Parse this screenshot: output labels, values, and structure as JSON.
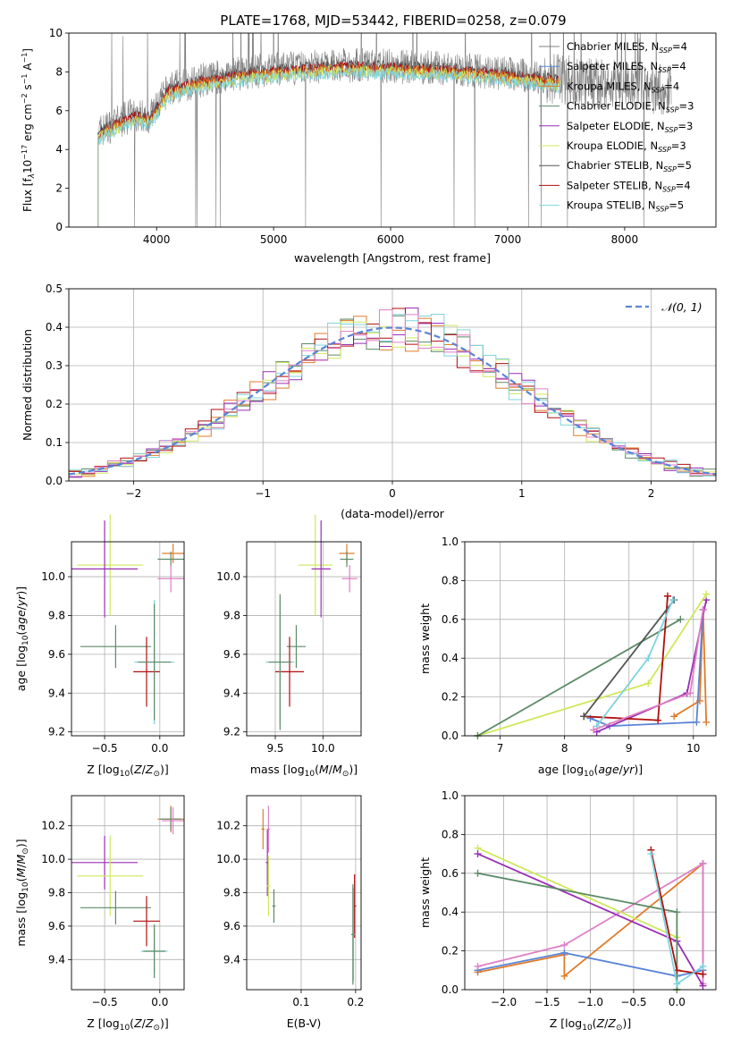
{
  "title": "PLATE=1768, MJD=53442, FIBERID=0258, z=0.079",
  "colors": {
    "grid": "#b0b0b0",
    "model_grey": "#808080",
    "orange": "#e07b29",
    "darkgreen": "#5b8a66",
    "purple": "#9a2fb5",
    "yellowgreen": "#cfe85a",
    "darkred": "#b00e0e",
    "cyan": "#7fd3de",
    "blue": "#5a84d6",
    "pink": "#e07fc5",
    "normal": "#5a84d6"
  },
  "chart_data": [
    {
      "id": "spectrum",
      "type": "line",
      "title": "PLATE=1768, MJD=53442, FIBERID=0258, z=0.079",
      "xlabel": "wavelength [Angstrom, rest frame]",
      "ylabel": "Flux [f_λ 10^-17 erg cm^-2 s^-1 A^-1]",
      "xlim": [
        3250,
        8780
      ],
      "ylim": [
        0,
        10
      ],
      "xticks": [
        4000,
        5000,
        6000,
        7000,
        8000
      ],
      "yticks": [
        0,
        2,
        4,
        6,
        8,
        10
      ],
      "legend_position": "right",
      "legend": [
        {
          "label": "Chabrier MILES, N",
          "sub": "SSP",
          "tail": "=4",
          "color": "#808080"
        },
        {
          "label": "Salpeter MILES, N",
          "sub": "SSP",
          "tail": "=4",
          "color": "#5a84d6"
        },
        {
          "label": "Kroupa MILES, N",
          "sub": "SSP",
          "tail": "=4",
          "color": "#e07b29"
        },
        {
          "label": "Chabrier ELODIE, N",
          "sub": "SSP",
          "tail": "=3",
          "color": "#5b8a66"
        },
        {
          "label": "Salpeter ELODIE, N",
          "sub": "SSP",
          "tail": "=3",
          "color": "#9a2fb5"
        },
        {
          "label": "Kroupa ELODIE, N",
          "sub": "SSP",
          "tail": "=3",
          "color": "#cfe85a"
        },
        {
          "label": "Chabrier STELIB, N",
          "sub": "SSP",
          "tail": "=5",
          "color": "#555555"
        },
        {
          "label": "Salpeter STELIB, N",
          "sub": "SSP",
          "tail": "=4",
          "color": "#b00e0e"
        },
        {
          "label": "Kroupa STELIB, N",
          "sub": "SSP",
          "tail": "=5",
          "color": "#7fd3de"
        }
      ],
      "continuum": [
        [
          3500,
          4.9
        ],
        [
          3800,
          5.8
        ],
        [
          3950,
          5.7
        ],
        [
          4100,
          7.1
        ],
        [
          4400,
          7.6
        ],
        [
          4800,
          8.0
        ],
        [
          5200,
          8.2
        ],
        [
          5600,
          8.35
        ],
        [
          6000,
          8.3
        ],
        [
          6500,
          8.2
        ],
        [
          7000,
          7.9
        ],
        [
          7450,
          7.6
        ]
      ],
      "models": [
        {
          "name": "Chabrier STELIB",
          "x": [
            3500,
            7450
          ],
          "color": "#555555"
        },
        {
          "name": "Salpeter STELIB",
          "x": [
            3500,
            7450
          ],
          "color": "#b00e0e"
        },
        {
          "name": "Kroupa MILES",
          "x": [
            3500,
            7450
          ],
          "color": "#e07b29"
        },
        {
          "name": "Kroupa ELODIE",
          "x": [
            3500,
            7450
          ],
          "color": "#cfe85a"
        },
        {
          "name": "Kroupa STELIB",
          "x": [
            3500,
            7450
          ],
          "color": "#7fd3de"
        }
      ],
      "data_range": [
        3500,
        8400
      ]
    },
    {
      "id": "residuals",
      "type": "line",
      "xlabel": "(data-model)/error",
      "ylabel": "Normed distribution",
      "xlim": [
        -2.5,
        2.5
      ],
      "ylim": [
        0,
        0.5
      ],
      "xticks": [
        -2,
        -1,
        0,
        1,
        2
      ],
      "yticks": [
        0.0,
        0.1,
        0.2,
        0.3,
        0.4,
        0.5
      ],
      "legend": [
        {
          "label": "𝒩(0, 1)",
          "color": "#5a84d6"
        }
      ],
      "legend_position": "top-right",
      "normal": {
        "mu": 0,
        "sigma": 1,
        "style": "dashed"
      },
      "bin_width": 0.1,
      "series_colors": [
        "#e07b29",
        "#5b8a66",
        "#9a2fb5",
        "#cfe85a",
        "#b00e0e",
        "#7fd3de",
        "#e07fc5"
      ]
    },
    {
      "id": "age_vs_Z",
      "type": "scatter",
      "xlabel": "Z [log10(Z/Z_sun)]",
      "ylabel": "age [log10(age/yr)]",
      "xlim": [
        -0.8,
        0.22
      ],
      "ylim": [
        9.18,
        10.18
      ],
      "xticks": [
        -0.5,
        0.0
      ],
      "yticks": [
        9.2,
        9.4,
        9.6,
        9.8,
        10.0
      ],
      "points": [
        {
          "x": 0.12,
          "y": 10.12,
          "xerr": 0.1,
          "yerr": 0.05,
          "color": "#e07b29"
        },
        {
          "x": 0.1,
          "y": 10.09,
          "xerr": 0.12,
          "yerr": 0.04,
          "color": "#5b8a66"
        },
        {
          "x": 0.1,
          "y": 9.99,
          "xerr": 0.12,
          "yerr": 0.07,
          "color": "#e07fc5"
        },
        {
          "x": -0.45,
          "y": 10.06,
          "xerr": 0.3,
          "yerr": 0.26,
          "color": "#cfe85a"
        },
        {
          "x": -0.5,
          "y": 10.04,
          "xerr": 0.3,
          "yerr": 0.25,
          "color": "#9a2fb5"
        },
        {
          "x": -0.4,
          "y": 9.64,
          "xerr": 0.32,
          "yerr": 0.11,
          "color": "#5b8a66"
        },
        {
          "x": -0.12,
          "y": 9.51,
          "xerr": 0.12,
          "yerr": 0.18,
          "color": "#b00e0e"
        },
        {
          "x": -0.05,
          "y": 9.56,
          "xerr": 0.18,
          "yerr": 0.32,
          "color": "#7fd3de"
        },
        {
          "x": -0.05,
          "y": 9.56,
          "xerr": 0.15,
          "yerr": 0.3,
          "color": "#5b8a66"
        }
      ]
    },
    {
      "id": "age_vs_mass",
      "type": "scatter",
      "xlabel": "mass [log10(M/M_sun)]",
      "ylabel": "",
      "xlim": [
        9.2,
        10.4
      ],
      "ylim": [
        9.18,
        10.18
      ],
      "xticks": [
        9.5,
        10.0
      ],
      "yticks": [
        9.2,
        9.4,
        9.6,
        9.8,
        10.0
      ],
      "points": [
        {
          "x": 10.25,
          "y": 10.12,
          "xerr": 0.08,
          "yerr": 0.05,
          "color": "#e07b29"
        },
        {
          "x": 10.25,
          "y": 10.09,
          "xerr": 0.07,
          "yerr": 0.04,
          "color": "#5b8a66"
        },
        {
          "x": 10.28,
          "y": 9.99,
          "xerr": 0.08,
          "yerr": 0.07,
          "color": "#e07fc5"
        },
        {
          "x": 9.92,
          "y": 10.06,
          "xerr": 0.18,
          "yerr": 0.26,
          "color": "#cfe85a"
        },
        {
          "x": 9.98,
          "y": 10.04,
          "xerr": 0.1,
          "yerr": 0.25,
          "color": "#9a2fb5"
        },
        {
          "x": 9.72,
          "y": 9.64,
          "xerr": 0.1,
          "yerr": 0.11,
          "color": "#5b8a66"
        },
        {
          "x": 9.65,
          "y": 9.51,
          "xerr": 0.15,
          "yerr": 0.18,
          "color": "#b00e0e"
        },
        {
          "x": 9.55,
          "y": 9.56,
          "xerr": 0.15,
          "yerr": 0.32,
          "color": "#7fd3de"
        },
        {
          "x": 9.55,
          "y": 9.56,
          "xerr": 0.12,
          "yerr": 0.35,
          "color": "#5b8a66"
        }
      ]
    },
    {
      "id": "weight_vs_age",
      "type": "line",
      "xlabel": "age [log10(age/yr)]",
      "ylabel": "mass weight",
      "xlim": [
        6.45,
        10.35
      ],
      "ylim": [
        0,
        1
      ],
      "xticks": [
        7,
        8,
        9,
        10
      ],
      "yticks": [
        0.0,
        0.2,
        0.4,
        0.6,
        0.8,
        1.0
      ],
      "series": [
        {
          "name": "Kroupa MILES",
          "color": "#e07b29",
          "points": [
            [
              9.7,
              0.1
            ],
            [
              10.1,
              0.18
            ],
            [
              10.15,
              0.65
            ],
            [
              10.2,
              0.07
            ]
          ]
        },
        {
          "name": "Salpeter MILES",
          "color": "#5a84d6",
          "points": [
            [
              8.4,
              0.09
            ],
            [
              8.7,
              0.05
            ],
            [
              10.05,
              0.07
            ],
            [
              10.15,
              0.65
            ]
          ]
        },
        {
          "name": "Salpeter ELODIE",
          "color": "#9a2fb5",
          "points": [
            [
              8.5,
              0.02
            ],
            [
              9.9,
              0.22
            ],
            [
              10.2,
              0.7
            ]
          ]
        },
        {
          "name": "Kroupa ELODIE",
          "color": "#cfe85a",
          "points": [
            [
              6.65,
              0.0
            ],
            [
              9.3,
              0.27
            ],
            [
              10.2,
              0.73
            ]
          ]
        },
        {
          "name": "Chabrier ELODIE",
          "color": "#5b8a66",
          "points": [
            [
              6.65,
              0.0
            ],
            [
              9.8,
              0.6
            ]
          ]
        },
        {
          "name": "Salpeter STELIB",
          "color": "#b00e0e",
          "points": [
            [
              8.3,
              0.1
            ],
            [
              9.45,
              0.08
            ],
            [
              9.6,
              0.72
            ]
          ]
        },
        {
          "name": "Chabrier STELIB",
          "color": "#555555",
          "points": [
            [
              8.3,
              0.1
            ],
            [
              9.7,
              0.7
            ]
          ]
        },
        {
          "name": "Kroupa STELIB",
          "color": "#7fd3de",
          "points": [
            [
              8.5,
              0.05
            ],
            [
              9.3,
              0.4
            ],
            [
              9.68,
              0.7
            ]
          ]
        },
        {
          "name": "Pink",
          "color": "#e07fc5",
          "points": [
            [
              8.45,
              0.03
            ],
            [
              9.95,
              0.22
            ],
            [
              10.15,
              0.65
            ]
          ]
        }
      ]
    },
    {
      "id": "mass_vs_Z",
      "type": "scatter",
      "xlabel": "Z [log10(Z/Z_sun)]",
      "ylabel": "mass [log10(M/M_sun)]",
      "xlim": [
        -0.8,
        0.22
      ],
      "ylim": [
        9.22,
        10.38
      ],
      "xticks": [
        -0.5,
        0.0
      ],
      "yticks": [
        9.4,
        9.6,
        9.8,
        10.0,
        10.2
      ],
      "points": [
        {
          "x": 0.1,
          "y": 10.24,
          "xerr": 0.12,
          "yerr": 0.08,
          "color": "#e07b29"
        },
        {
          "x": 0.1,
          "y": 10.24,
          "xerr": 0.1,
          "yerr": 0.07,
          "color": "#5b8a66"
        },
        {
          "x": 0.12,
          "y": 10.23,
          "xerr": 0.1,
          "yerr": 0.08,
          "color": "#e07fc5"
        },
        {
          "x": -0.5,
          "y": 9.98,
          "xerr": 0.3,
          "yerr": 0.16,
          "color": "#9a2fb5"
        },
        {
          "x": -0.45,
          "y": 9.9,
          "xerr": 0.3,
          "yerr": 0.24,
          "color": "#cfe85a"
        },
        {
          "x": -0.4,
          "y": 9.71,
          "xerr": 0.32,
          "yerr": 0.1,
          "color": "#5b8a66"
        },
        {
          "x": -0.12,
          "y": 9.63,
          "xerr": 0.12,
          "yerr": 0.15,
          "color": "#b00e0e"
        },
        {
          "x": -0.05,
          "y": 9.45,
          "xerr": 0.12,
          "yerr": 0.13,
          "color": "#7fd3de"
        },
        {
          "x": -0.05,
          "y": 9.45,
          "xerr": 0.1,
          "yerr": 0.16,
          "color": "#5b8a66"
        }
      ]
    },
    {
      "id": "mass_vs_ebv",
      "type": "scatter",
      "xlabel": "E(B-V)",
      "ylabel": "",
      "xlim": [
        0.0,
        0.21
      ],
      "ylim": [
        9.22,
        10.38
      ],
      "xticks": [
        0.1,
        0.2
      ],
      "yticks": [
        9.4,
        9.6,
        9.8,
        10.0,
        10.2
      ],
      "points": [
        {
          "x": 0.03,
          "y": 10.18,
          "xerr": 0.003,
          "yerr": 0.12,
          "color": "#e07b29"
        },
        {
          "x": 0.04,
          "y": 10.18,
          "xerr": 0.003,
          "yerr": 0.14,
          "color": "#e07fc5"
        },
        {
          "x": 0.038,
          "y": 9.98,
          "xerr": 0.003,
          "yerr": 0.2,
          "color": "#9a2fb5"
        },
        {
          "x": 0.04,
          "y": 9.84,
          "xerr": 0.003,
          "yerr": 0.18,
          "color": "#cfe85a"
        },
        {
          "x": 0.05,
          "y": 9.72,
          "xerr": 0.003,
          "yerr": 0.1,
          "color": "#5b8a66"
        },
        {
          "x": 0.198,
          "y": 9.72,
          "xerr": 0.003,
          "yerr": 0.19,
          "color": "#b00e0e"
        },
        {
          "x": 0.196,
          "y": 9.55,
          "xerr": 0.003,
          "yerr": 0.28,
          "color": "#7fd3de"
        },
        {
          "x": 0.195,
          "y": 9.55,
          "xerr": 0.003,
          "yerr": 0.3,
          "color": "#5b8a66"
        }
      ]
    },
    {
      "id": "weight_vs_Z",
      "type": "line",
      "xlabel": "Z [log10(Z/Z_sun)]",
      "ylabel": "mass weight",
      "xlim": [
        -2.45,
        0.45
      ],
      "ylim": [
        0,
        1
      ],
      "xticks": [
        -2.0,
        -1.5,
        -1.0,
        -0.5,
        0.0
      ],
      "yticks": [
        0.0,
        0.2,
        0.4,
        0.6,
        0.8,
        1.0
      ],
      "series": [
        {
          "name": "Kroupa MILES",
          "color": "#e07b29",
          "points": [
            [
              -2.3,
              0.09
            ],
            [
              -1.3,
              0.18
            ],
            [
              -1.3,
              0.07
            ],
            [
              0.3,
              0.65
            ],
            [
              0.3,
              0.1
            ]
          ]
        },
        {
          "name": "Salpeter MILES",
          "color": "#5a84d6",
          "points": [
            [
              -2.3,
              0.1
            ],
            [
              -1.3,
              0.19
            ],
            [
              0.0,
              0.07
            ],
            [
              0.3,
              0.1
            ],
            [
              0.3,
              0.65
            ]
          ]
        },
        {
          "name": "Pink",
          "color": "#e07fc5",
          "points": [
            [
              -2.3,
              0.12
            ],
            [
              -1.3,
              0.23
            ],
            [
              0.3,
              0.65
            ],
            [
              0.3,
              0.03
            ]
          ]
        },
        {
          "name": "Kroupa ELODIE",
          "color": "#cfe85a",
          "points": [
            [
              -2.3,
              0.73
            ],
            [
              0.0,
              0.27
            ],
            [
              0.0,
              0.0
            ]
          ]
        },
        {
          "name": "Salpeter ELODIE",
          "color": "#9a2fb5",
          "points": [
            [
              -2.3,
              0.7
            ],
            [
              0.0,
              0.25
            ],
            [
              0.3,
              0.02
            ]
          ]
        },
        {
          "name": "Chabrier ELODIE",
          "color": "#5b8a66",
          "points": [
            [
              -2.3,
              0.6
            ],
            [
              0.0,
              0.4
            ],
            [
              0.0,
              0.0
            ]
          ]
        },
        {
          "name": "Salpeter STELIB",
          "color": "#b00e0e",
          "points": [
            [
              -0.3,
              0.72
            ],
            [
              0.0,
              0.1
            ],
            [
              0.3,
              0.08
            ]
          ]
        },
        {
          "name": "Kroupa STELIB",
          "color": "#7fd3de",
          "points": [
            [
              -0.3,
              0.7
            ],
            [
              0.0,
              0.03
            ],
            [
              0.3,
              0.12
            ]
          ]
        }
      ]
    }
  ]
}
